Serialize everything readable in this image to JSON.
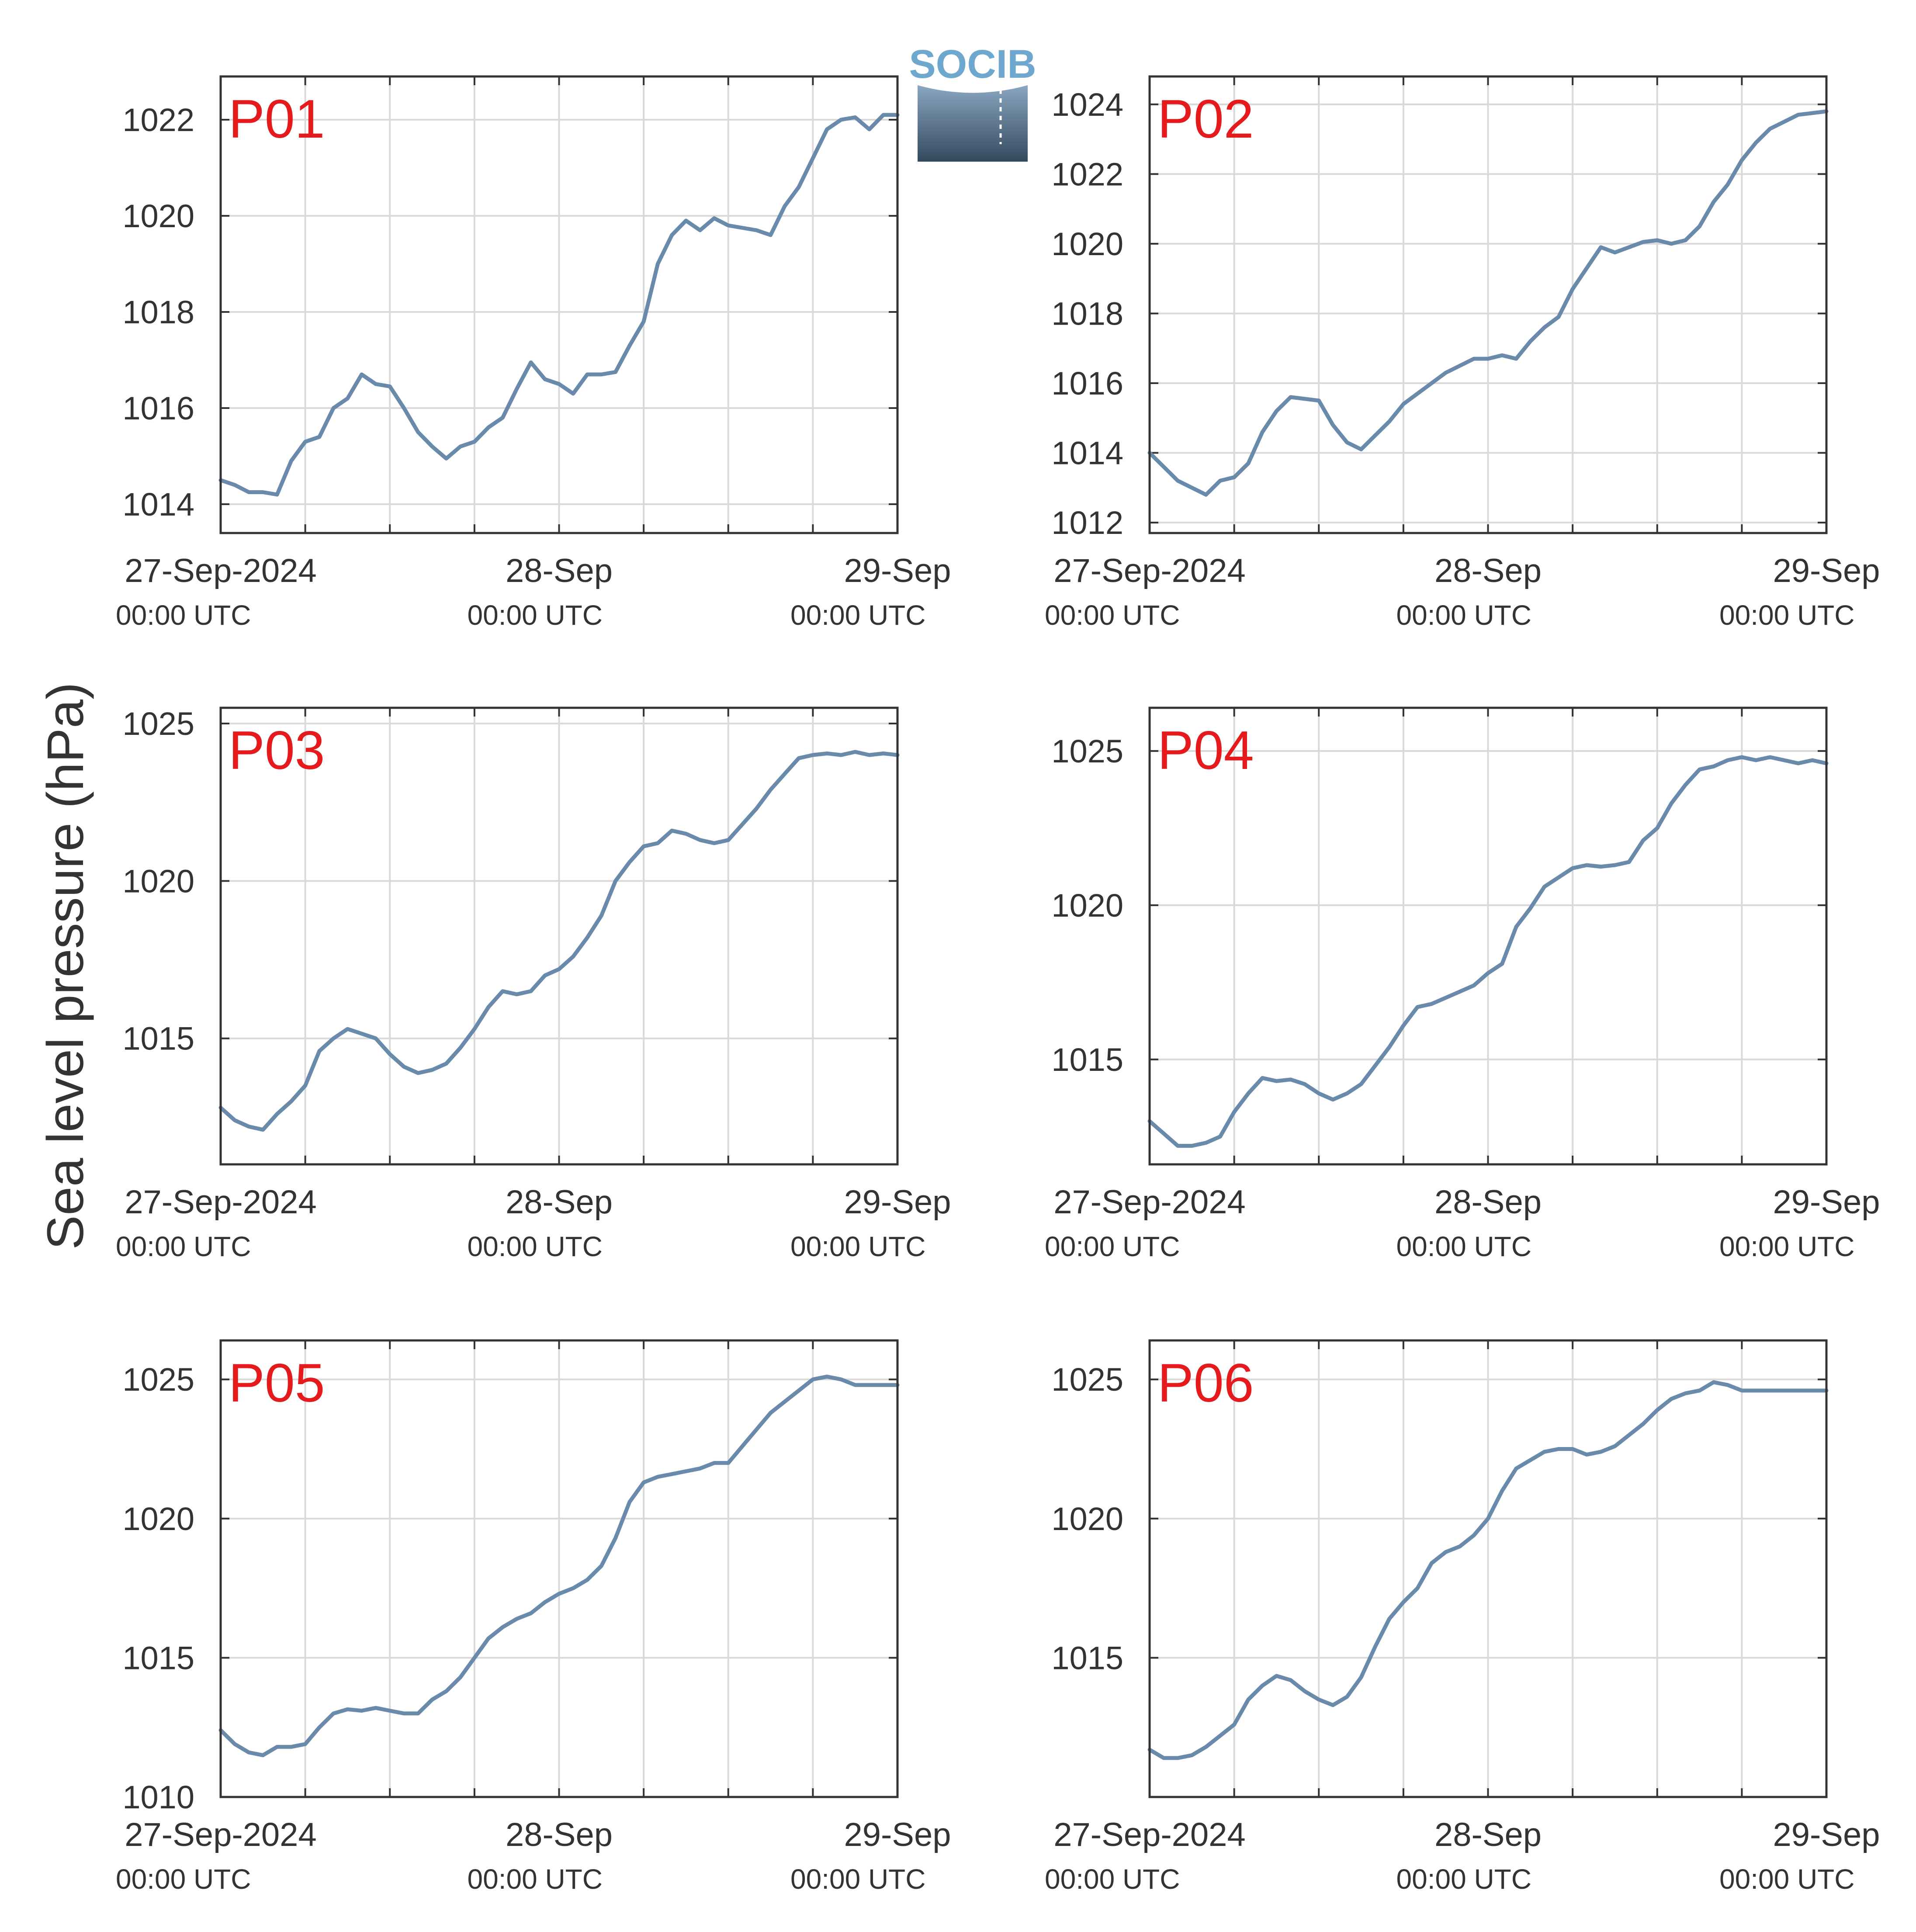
{
  "figure": {
    "ylabel": "Sea level pressure (hPa)",
    "logo_text": "SOCIB",
    "colors": {
      "line": "#6a8aab",
      "panel_title": "#e41a1c",
      "grid": "#d9d9d9",
      "axis": "#333333",
      "text": "#333333"
    }
  },
  "chart_data": [
    {
      "type": "line",
      "title": "P01",
      "x_ticks": [
        {
          "label": "27-Sep-2024",
          "sub": "00:00 UTC"
        },
        {
          "label": "28-Sep",
          "sub": "00:00 UTC"
        },
        {
          "label": "29-Sep",
          "sub": "00:00 UTC"
        }
      ],
      "x_range_hours": [
        0,
        48
      ],
      "ylim": [
        1013.4,
        1022.9
      ],
      "y_ticks": [
        1014,
        1016,
        1018,
        1020,
        1022
      ],
      "series": [
        {
          "x": [
            0,
            1,
            2,
            3,
            4,
            5,
            6,
            7,
            8,
            9,
            10,
            11,
            12,
            13,
            14,
            15,
            16,
            17,
            18,
            19,
            20,
            21,
            22,
            23,
            24,
            25,
            26,
            27,
            28,
            29,
            30,
            31,
            32,
            33,
            34,
            35,
            36,
            37,
            38,
            39,
            40,
            41,
            42,
            43,
            44,
            45,
            46,
            47,
            48
          ],
          "y": [
            1014.5,
            1014.4,
            1014.25,
            1014.25,
            1014.2,
            1014.9,
            1015.3,
            1015.4,
            1016.0,
            1016.2,
            1016.7,
            1016.5,
            1016.45,
            1016.0,
            1015.5,
            1015.2,
            1014.95,
            1015.2,
            1015.3,
            1015.6,
            1015.8,
            1016.4,
            1016.95,
            1016.6,
            1016.5,
            1016.3,
            1016.7,
            1016.7,
            1016.75,
            1017.3,
            1017.8,
            1019.0,
            1019.6,
            1019.9,
            1019.7,
            1019.95,
            1019.8,
            1019.75,
            1019.7,
            1019.6,
            1020.2,
            1020.6,
            1021.2,
            1021.8,
            1022.0,
            1022.05,
            1021.8,
            1022.1,
            1022.1
          ]
        }
      ]
    },
    {
      "type": "line",
      "title": "P02",
      "x_ticks": [
        {
          "label": "27-Sep-2024",
          "sub": "00:00 UTC"
        },
        {
          "label": "28-Sep",
          "sub": "00:00 UTC"
        },
        {
          "label": "29-Sep",
          "sub": "00:00 UTC"
        }
      ],
      "x_range_hours": [
        0,
        48
      ],
      "ylim": [
        1011.7,
        1024.8
      ],
      "y_ticks": [
        1012,
        1014,
        1016,
        1018,
        1020,
        1022,
        1024
      ],
      "series": [
        {
          "x": [
            0,
            1,
            2,
            3,
            4,
            5,
            6,
            7,
            8,
            9,
            10,
            11,
            12,
            13,
            14,
            15,
            16,
            17,
            18,
            19,
            20,
            21,
            22,
            23,
            24,
            25,
            26,
            27,
            28,
            29,
            30,
            31,
            32,
            33,
            34,
            35,
            36,
            37,
            38,
            39,
            40,
            41,
            42,
            43,
            44,
            45,
            46,
            47,
            48
          ],
          "y": [
            1014.0,
            1013.6,
            1013.2,
            1013.0,
            1012.8,
            1013.2,
            1013.3,
            1013.7,
            1014.6,
            1015.2,
            1015.6,
            1015.55,
            1015.5,
            1014.8,
            1014.3,
            1014.1,
            1014.5,
            1014.9,
            1015.4,
            1015.7,
            1016.0,
            1016.3,
            1016.5,
            1016.7,
            1016.7,
            1016.8,
            1016.7,
            1017.2,
            1017.6,
            1017.9,
            1018.7,
            1019.3,
            1019.9,
            1019.75,
            1019.9,
            1020.05,
            1020.1,
            1020.0,
            1020.1,
            1020.5,
            1021.2,
            1021.7,
            1022.4,
            1022.9,
            1023.3,
            1023.5,
            1023.7,
            1023.75,
            1023.8
          ]
        }
      ]
    },
    {
      "type": "line",
      "title": "P03",
      "x_ticks": [
        {
          "label": "27-Sep-2024",
          "sub": "00:00 UTC"
        },
        {
          "label": "28-Sep",
          "sub": "00:00 UTC"
        },
        {
          "label": "29-Sep",
          "sub": "00:00 UTC"
        }
      ],
      "x_range_hours": [
        0,
        48
      ],
      "ylim": [
        1011.0,
        1025.5
      ],
      "y_ticks": [
        1015,
        1020,
        1025
      ],
      "series": [
        {
          "x": [
            0,
            1,
            2,
            3,
            4,
            5,
            6,
            7,
            8,
            9,
            10,
            11,
            12,
            13,
            14,
            15,
            16,
            17,
            18,
            19,
            20,
            21,
            22,
            23,
            24,
            25,
            26,
            27,
            28,
            29,
            30,
            31,
            32,
            33,
            34,
            35,
            36,
            37,
            38,
            39,
            40,
            41,
            42,
            43,
            44,
            45,
            46,
            47,
            48
          ],
          "y": [
            1012.8,
            1012.4,
            1012.2,
            1012.1,
            1012.6,
            1013.0,
            1013.5,
            1014.6,
            1015.0,
            1015.3,
            1015.15,
            1015.0,
            1014.5,
            1014.1,
            1013.9,
            1014.0,
            1014.2,
            1014.7,
            1015.3,
            1016.0,
            1016.5,
            1016.4,
            1016.5,
            1017.0,
            1017.2,
            1017.6,
            1018.2,
            1018.9,
            1020.0,
            1020.6,
            1021.1,
            1021.2,
            1021.6,
            1021.5,
            1021.3,
            1021.2,
            1021.3,
            1021.8,
            1022.3,
            1022.9,
            1023.4,
            1023.9,
            1024.0,
            1024.05,
            1024.0,
            1024.1,
            1024.0,
            1024.05,
            1024.0
          ]
        }
      ]
    },
    {
      "type": "line",
      "title": "P04",
      "x_ticks": [
        {
          "label": "27-Sep-2024",
          "sub": "00:00 UTC"
        },
        {
          "label": "28-Sep",
          "sub": "00:00 UTC"
        },
        {
          "label": "29-Sep",
          "sub": "00:00 UTC"
        }
      ],
      "x_range_hours": [
        0,
        48
      ],
      "ylim": [
        1011.6,
        1026.4
      ],
      "y_ticks": [
        1015,
        1020,
        1025
      ],
      "series": [
        {
          "x": [
            0,
            1,
            2,
            3,
            4,
            5,
            6,
            7,
            8,
            9,
            10,
            11,
            12,
            13,
            14,
            15,
            16,
            17,
            18,
            19,
            20,
            21,
            22,
            23,
            24,
            25,
            26,
            27,
            28,
            29,
            30,
            31,
            32,
            33,
            34,
            35,
            36,
            37,
            38,
            39,
            40,
            41,
            42,
            43,
            44,
            45,
            46,
            47,
            48
          ],
          "y": [
            1013.0,
            1012.6,
            1012.2,
            1012.2,
            1012.3,
            1012.5,
            1013.3,
            1013.9,
            1014.4,
            1014.3,
            1014.35,
            1014.2,
            1013.9,
            1013.7,
            1013.9,
            1014.2,
            1014.8,
            1015.4,
            1016.1,
            1016.7,
            1016.8,
            1017.0,
            1017.2,
            1017.4,
            1017.8,
            1018.1,
            1019.3,
            1019.9,
            1020.6,
            1020.9,
            1021.2,
            1021.3,
            1021.25,
            1021.3,
            1021.4,
            1022.1,
            1022.5,
            1023.3,
            1023.9,
            1024.4,
            1024.5,
            1024.7,
            1024.8,
            1024.7,
            1024.8,
            1024.7,
            1024.6,
            1024.7,
            1024.6
          ]
        }
      ]
    },
    {
      "type": "line",
      "title": "P05",
      "x_ticks": [
        {
          "label": "27-Sep-2024",
          "sub": "00:00 UTC"
        },
        {
          "label": "28-Sep",
          "sub": "00:00 UTC"
        },
        {
          "label": "29-Sep",
          "sub": "00:00 UTC"
        }
      ],
      "x_range_hours": [
        0,
        48
      ],
      "ylim": [
        1010.0,
        1026.4
      ],
      "y_ticks": [
        1010,
        1015,
        1020,
        1025
      ],
      "series": [
        {
          "x": [
            0,
            1,
            2,
            3,
            4,
            5,
            6,
            7,
            8,
            9,
            10,
            11,
            12,
            13,
            14,
            15,
            16,
            17,
            18,
            19,
            20,
            21,
            22,
            23,
            24,
            25,
            26,
            27,
            28,
            29,
            30,
            31,
            32,
            33,
            34,
            35,
            36,
            37,
            38,
            39,
            40,
            41,
            42,
            43,
            44,
            45,
            46,
            47,
            48
          ],
          "y": [
            1012.4,
            1011.9,
            1011.6,
            1011.5,
            1011.8,
            1011.8,
            1011.9,
            1012.5,
            1013.0,
            1013.15,
            1013.1,
            1013.2,
            1013.1,
            1013.0,
            1013.0,
            1013.5,
            1013.8,
            1014.3,
            1015.0,
            1015.7,
            1016.1,
            1016.4,
            1016.6,
            1017.0,
            1017.3,
            1017.5,
            1017.8,
            1018.3,
            1019.3,
            1020.6,
            1021.3,
            1021.5,
            1021.6,
            1021.7,
            1021.8,
            1022.0,
            1022.0,
            1022.6,
            1023.2,
            1023.8,
            1024.2,
            1024.6,
            1025.0,
            1025.1,
            1025.0,
            1024.8,
            1024.8,
            1024.8,
            1024.8
          ]
        }
      ]
    },
    {
      "type": "line",
      "title": "P06",
      "x_ticks": [
        {
          "label": "27-Sep-2024",
          "sub": "00:00 UTC"
        },
        {
          "label": "28-Sep",
          "sub": "00:00 UTC"
        },
        {
          "label": "29-Sep",
          "sub": "00:00 UTC"
        }
      ],
      "x_range_hours": [
        0,
        48
      ],
      "ylim": [
        1010.0,
        1026.4
      ],
      "y_ticks": [
        1015,
        1020,
        1025
      ],
      "series": [
        {
          "x": [
            0,
            1,
            2,
            3,
            4,
            5,
            6,
            7,
            8,
            9,
            10,
            11,
            12,
            13,
            14,
            15,
            16,
            17,
            18,
            19,
            20,
            21,
            22,
            23,
            24,
            25,
            26,
            27,
            28,
            29,
            30,
            31,
            32,
            33,
            34,
            35,
            36,
            37,
            38,
            39,
            40,
            41,
            42,
            43,
            44,
            45,
            46,
            47,
            48
          ],
          "y": [
            1011.7,
            1011.4,
            1011.4,
            1011.5,
            1011.8,
            1012.2,
            1012.6,
            1013.5,
            1014.0,
            1014.35,
            1014.2,
            1013.8,
            1013.5,
            1013.3,
            1013.6,
            1014.3,
            1015.4,
            1016.4,
            1017.0,
            1017.5,
            1018.4,
            1018.8,
            1019.0,
            1019.4,
            1020.0,
            1021.0,
            1021.8,
            1022.1,
            1022.4,
            1022.5,
            1022.5,
            1022.3,
            1022.4,
            1022.6,
            1023.0,
            1023.4,
            1023.9,
            1024.3,
            1024.5,
            1024.6,
            1024.9,
            1024.8,
            1024.6,
            1024.6,
            1024.6,
            1024.6,
            1024.6,
            1024.6,
            1024.6
          ]
        }
      ]
    }
  ]
}
